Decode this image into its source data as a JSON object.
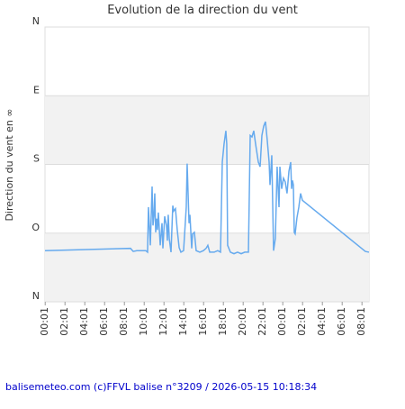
{
  "chart_data": {
    "type": "line",
    "title": "Evolution de la direction du vent",
    "y_label": "Direction du vent en ∞",
    "footer": "balisemeteo.com (c)FFVL balise n°3209 / 2026-05-15 10:18:34",
    "color": "#66aaee",
    "grid": true,
    "xlim": [
      0,
      32.73
    ],
    "ylim": [
      0,
      360
    ],
    "yticks": [
      {
        "value": 0,
        "label": "N"
      },
      {
        "value": 90,
        "label": "O"
      },
      {
        "value": 180,
        "label": "S"
      },
      {
        "value": 270,
        "label": "E"
      },
      {
        "value": 360,
        "label": "N"
      }
    ],
    "xticks": [
      {
        "value": 0.02,
        "label": "00:01"
      },
      {
        "value": 2.02,
        "label": "02:01"
      },
      {
        "value": 4.02,
        "label": "04:01"
      },
      {
        "value": 6.02,
        "label": "06:01"
      },
      {
        "value": 8.02,
        "label": "08:01"
      },
      {
        "value": 10.02,
        "label": "10:01"
      },
      {
        "value": 12.02,
        "label": "12:01"
      },
      {
        "value": 14.02,
        "label": "14:01"
      },
      {
        "value": 16.02,
        "label": "16:01"
      },
      {
        "value": 18.02,
        "label": "18:01"
      },
      {
        "value": 20.02,
        "label": "20:01"
      },
      {
        "value": 22.02,
        "label": "22:01"
      },
      {
        "value": 24.02,
        "label": "00:01"
      },
      {
        "value": 26.02,
        "label": "02:01"
      },
      {
        "value": 28.02,
        "label": "04:01"
      },
      {
        "value": 30.02,
        "label": "06:01"
      },
      {
        "value": 32.02,
        "label": "08:01"
      }
    ],
    "x": [
      0,
      8.64,
      8.91,
      9.27,
      10.18,
      10.36,
      10.45,
      10.64,
      10.82,
      10.91,
      11,
      11.09,
      11.18,
      11.27,
      11.36,
      11.45,
      11.64,
      11.82,
      11.91,
      12.09,
      12.27,
      12.36,
      12.45,
      12.55,
      12.73,
      12.91,
      13,
      13.18,
      13.36,
      13.55,
      13.73,
      14,
      14.27,
      14.36,
      14.55,
      14.64,
      14.82,
      14.91,
      15.09,
      15.27,
      15.64,
      16,
      16.27,
      16.45,
      16.64,
      17.09,
      17.45,
      17.73,
      17.91,
      18.09,
      18.27,
      18.36,
      18.45,
      18.73,
      19.09,
      19.45,
      19.82,
      20.18,
      20.55,
      20.73,
      20.91,
      21.09,
      21.27,
      21.55,
      21.73,
      21.91,
      22.09,
      22.27,
      22.45,
      22.64,
      22.73,
      22.91,
      23.09,
      23.27,
      23.45,
      23.64,
      23.73,
      23.91,
      24.09,
      24.27,
      24.45,
      24.64,
      24.82,
      24.91,
      25,
      25.09,
      25.18,
      25.27,
      25.45,
      25.64,
      25.82,
      26,
      32.36,
      32.73
    ],
    "values": [
      67,
      70,
      66,
      67,
      67,
      65,
      124,
      74,
      151,
      100,
      112,
      142,
      91,
      109,
      94,
      117,
      74,
      103,
      70,
      112,
      100,
      80,
      114,
      83,
      65,
      126,
      119,
      122,
      94,
      71,
      65,
      67,
      124,
      181,
      103,
      114,
      70,
      89,
      91,
      67,
      65,
      67,
      70,
      74,
      65,
      65,
      67,
      65,
      183,
      207,
      224,
      207,
      74,
      65,
      63,
      65,
      63,
      65,
      65,
      218,
      216,
      224,
      207,
      183,
      177,
      218,
      230,
      236,
      212,
      183,
      153,
      192,
      67,
      83,
      177,
      124,
      177,
      148,
      162,
      157,
      142,
      171,
      183,
      148,
      159,
      153,
      91,
      89,
      110,
      124,
      142,
      133,
      66,
      65
    ]
  }
}
